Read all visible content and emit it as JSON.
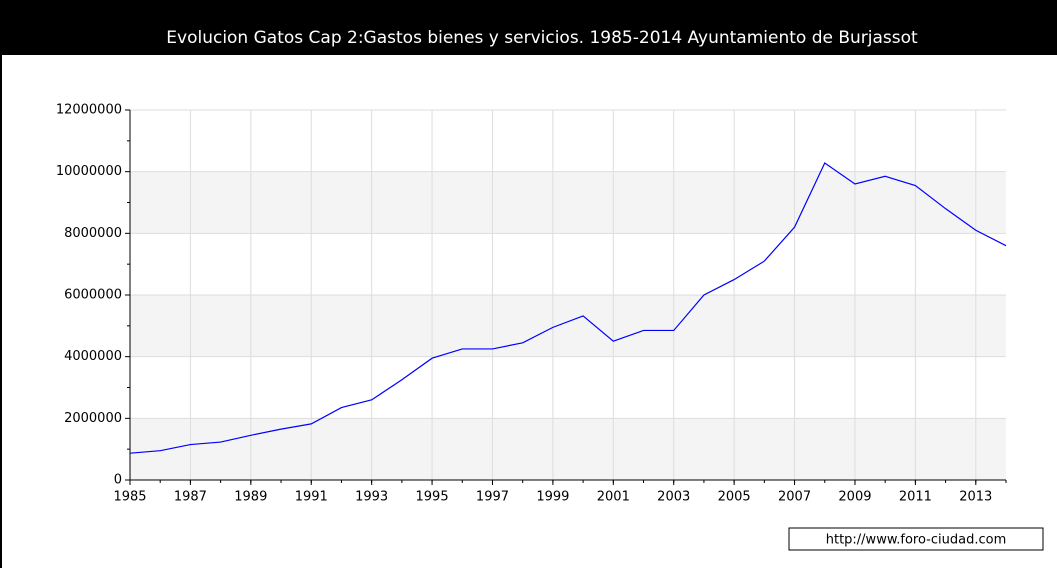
{
  "chart_data": {
    "type": "line",
    "title": "Evolucion Gatos Cap 2:Gastos bienes y servicios. 1985-2014 Ayuntamiento de Burjassot",
    "x": [
      1985,
      1986,
      1987,
      1988,
      1989,
      1990,
      1991,
      1992,
      1993,
      1994,
      1995,
      1996,
      1997,
      1998,
      1999,
      2000,
      2001,
      2002,
      2003,
      2004,
      2005,
      2006,
      2007,
      2008,
      2009,
      2010,
      2011,
      2012,
      2013,
      2014
    ],
    "series": [
      {
        "name": "Gastos bienes y servicios",
        "color": "#0000ff",
        "values": [
          870000,
          950000,
          1150000,
          1230000,
          1450000,
          1650000,
          1820000,
          2350000,
          2600000,
          3250000,
          3950000,
          4250000,
          4250000,
          4450000,
          4950000,
          5320000,
          4500000,
          4850000,
          4850000,
          6000000,
          6500000,
          7100000,
          8200000,
          10280000,
          9600000,
          9850000,
          9550000,
          8800000,
          8100000,
          7600000
        ]
      }
    ],
    "xlim": [
      1985,
      2014
    ],
    "xticks": [
      1985,
      1987,
      1989,
      1991,
      1993,
      1995,
      1997,
      1999,
      2001,
      2003,
      2005,
      2007,
      2009,
      2011,
      2013
    ],
    "ylim": [
      0,
      12000000
    ],
    "yticks": [
      0,
      2000000,
      4000000,
      6000000,
      8000000,
      10000000,
      12000000
    ],
    "grid": true,
    "source": "http://www.foro-ciudad.com"
  }
}
